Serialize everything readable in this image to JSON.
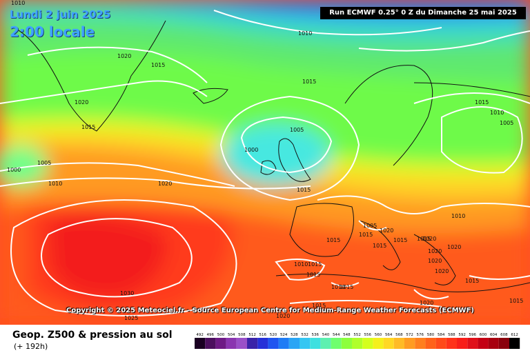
{
  "header": {
    "date_line": "Lundi 2 juin 2025",
    "time_line": "2:00 locale",
    "run_info": "Run ECMWF 0.25° 0 Z du Dimanche 25 mai 2025"
  },
  "copyright": "Copyright © 2025 Meteociel.fr - Source European Centre for Medium-Range Weather Forecasts (ECMWF)",
  "footer": {
    "title": "Geop. Z500 & pression au sol",
    "forecast_hour": "(+ 192h)"
  },
  "isobar_labels": [
    "1010",
    "1020",
    "1015",
    "1020",
    "1015",
    "1015",
    "1010",
    "1015",
    "1005",
    "1000",
    "1005",
    "1010",
    "1020",
    "1000",
    "1005",
    "1010",
    "1015",
    "1010",
    "1005",
    "1015",
    "1020",
    "1015",
    "1015",
    "1015",
    "1015",
    "1020",
    "1020",
    "1020",
    "1020",
    "1020",
    "1010",
    "1015",
    "1015",
    "1010",
    "1015",
    "1030",
    "1025",
    "1015",
    "1020",
    "1015",
    "1015",
    "1020"
  ],
  "colorbar": {
    "values": [
      "492",
      "496",
      "500",
      "504",
      "508",
      "512",
      "516",
      "520",
      "524",
      "528",
      "532",
      "536",
      "540",
      "544",
      "548",
      "552",
      "556",
      "560",
      "564",
      "568",
      "572",
      "576",
      "580",
      "584",
      "588",
      "592",
      "596",
      "600",
      "604",
      "608",
      "612"
    ],
    "colors": [
      "#1a0022",
      "#4c0f5e",
      "#6e1a85",
      "#8a35b0",
      "#9a50c8",
      "#3a23a8",
      "#2630d8",
      "#1f55f0",
      "#1f7cf5",
      "#2aa5f5",
      "#35c6f2",
      "#3ee0e0",
      "#5df0b0",
      "#6fff6e",
      "#8dff3c",
      "#b0ff2a",
      "#d4ff1e",
      "#f4f01c",
      "#ffd824",
      "#ffbb26",
      "#ff9c22",
      "#ff7f1e",
      "#ff621a",
      "#ff4a1a",
      "#ff321a",
      "#f81e1a",
      "#e0101a",
      "#c40014",
      "#a80010",
      "#8a000c",
      "#000000"
    ]
  }
}
